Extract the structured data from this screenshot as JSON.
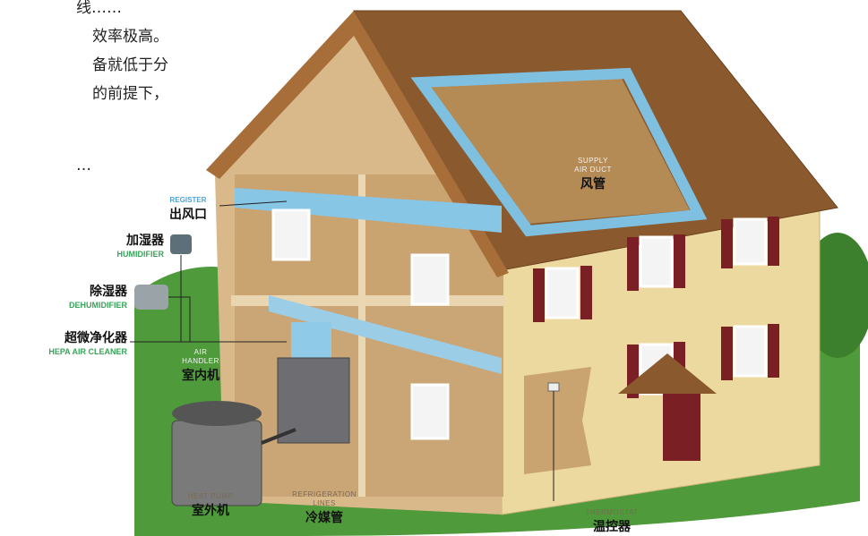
{
  "intro_lines": [
    "线……",
    "效率极高。",
    "备就低于分",
    "的前提下，",
    "…"
  ],
  "labels": [
    {
      "en": [
        "REGISTER"
      ],
      "cn": "出风口"
    },
    {
      "en": [
        "HUMIDIFIER"
      ],
      "cn": "加湿器"
    },
    {
      "en": [
        "DEHUMIDIFIER"
      ],
      "cn": "除湿器"
    },
    {
      "en": [
        "HEPA AIR CLEANER"
      ],
      "cn": "超微净化器"
    },
    {
      "en": [
        "AIR",
        "HANDLER"
      ],
      "cn": "室内机"
    },
    {
      "en": [
        "SUPPLY",
        "AIR DUCT"
      ],
      "cn": "风管"
    },
    {
      "en": [
        "HEAT PUMP"
      ],
      "cn": "室外机"
    },
    {
      "en": [
        "REFRIGERATION",
        "LINES"
      ],
      "cn": "冷媒管"
    },
    {
      "en": [
        "THERMOSTAT"
      ],
      "cn": "温控器"
    }
  ]
}
